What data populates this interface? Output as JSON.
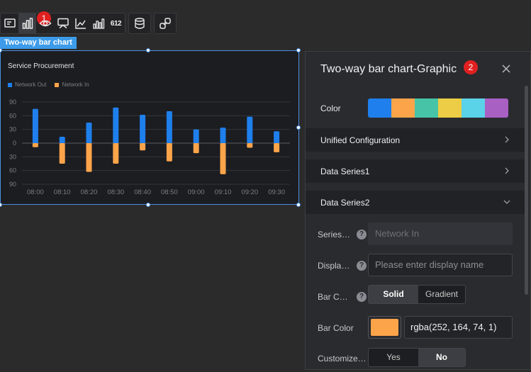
{
  "toolbar": {
    "groups": [
      [
        "text-icon",
        "bar-chart-icon",
        "eye-icon",
        "monitor-icon",
        "line-chart-icon",
        "bar-chart-number-icon",
        "number-612-icon"
      ],
      [
        "database-icon"
      ],
      [
        "link-icon"
      ]
    ],
    "number_icon_text": "612",
    "badge1": "1"
  },
  "selected_chart": {
    "tag": "Two-way bar chart"
  },
  "chart_data": {
    "type": "bar",
    "title": "Service Procurement",
    "categories": [
      "08:00",
      "08:10",
      "08:20",
      "08:30",
      "08:40",
      "08:50",
      "09:00",
      "09:10",
      "09:20",
      "09:30"
    ],
    "series": [
      {
        "name": "Network Out",
        "color": "#1f7fec",
        "values": [
          75,
          14,
          45,
          78,
          62,
          70,
          30,
          34,
          58,
          26
        ]
      },
      {
        "name": "Network In",
        "color": "#fca44a",
        "values": [
          -9,
          -45,
          -63,
          -45,
          -16,
          -40,
          -22,
          -68,
          -10,
          -20
        ]
      }
    ],
    "ylim": [
      -90,
      90
    ],
    "yticks": [
      "90",
      "60",
      "30",
      "0",
      "30",
      "60",
      "90"
    ],
    "grid": true,
    "legend": "top-left"
  },
  "panel": {
    "title": "Two-way bar chart-Graphic",
    "badge2": "2",
    "close_icon": "close-icon",
    "color_label": "Color",
    "palette": [
      "#1f7fec",
      "#fca44a",
      "#47c4a8",
      "#eccd45",
      "#5ad2e8",
      "#a860c3"
    ],
    "sections": [
      {
        "label": "Unified Configuration",
        "state": "collapsed"
      },
      {
        "label": "Data Series1",
        "state": "collapsed"
      },
      {
        "label": "Data Series2",
        "state": "expanded"
      }
    ],
    "series_name_label": "Series…",
    "series_name_value": "Network In",
    "display_label": "Displa…",
    "display_placeholder": "Please enter display name",
    "bar_color_type_label": "Bar C…",
    "bar_color_type_options": [
      "Solid",
      "Gradient"
    ],
    "bar_color_type_selected": "Solid",
    "bar_color_label": "Bar Color",
    "bar_color_swatch": "#fca44a",
    "bar_color_value": "rgba(252, 164, 74, 1)",
    "customize_label": "Customize…",
    "customize_options": [
      "Yes",
      "No"
    ],
    "customize_selected": "No"
  }
}
